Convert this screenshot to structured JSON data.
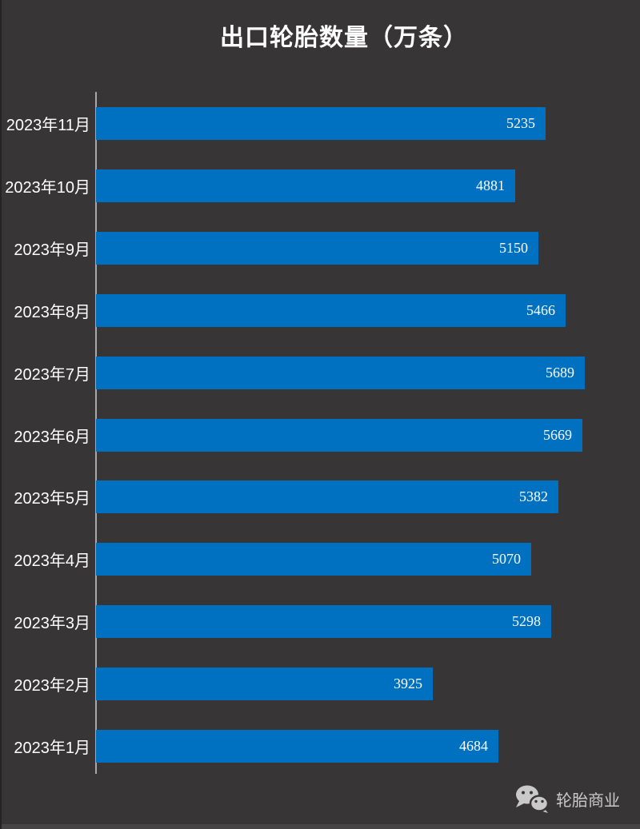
{
  "title": "出口轮胎数量（万条）",
  "watermark": {
    "icon": "wechat-icon",
    "label": "轮胎商业"
  },
  "colors": {
    "background": "#383536",
    "bar": "#0070c0",
    "axis": "#a8a8a8",
    "text": "#ffffff",
    "watermark": "#c9c9c9",
    "bottom_strip": "#474445",
    "left_edge": "#262324"
  },
  "chart_data": {
    "type": "bar",
    "orientation": "horizontal",
    "title": "出口轮胎数量（万条）",
    "categories": [
      "2023年11月",
      "2023年10月",
      "2023年9月",
      "2023年8月",
      "2023年7月",
      "2023年6月",
      "2023年5月",
      "2023年4月",
      "2023年3月",
      "2023年2月",
      "2023年1月"
    ],
    "values": [
      5235,
      4881,
      5150,
      5466,
      5689,
      5669,
      5382,
      5070,
      5298,
      3925,
      4684
    ],
    "bar_color": "#0070c0",
    "value_label_position": "inside-end",
    "xlim": [
      0,
      6150
    ],
    "xlabel": "",
    "ylabel": "",
    "grid": false,
    "legend": false
  }
}
